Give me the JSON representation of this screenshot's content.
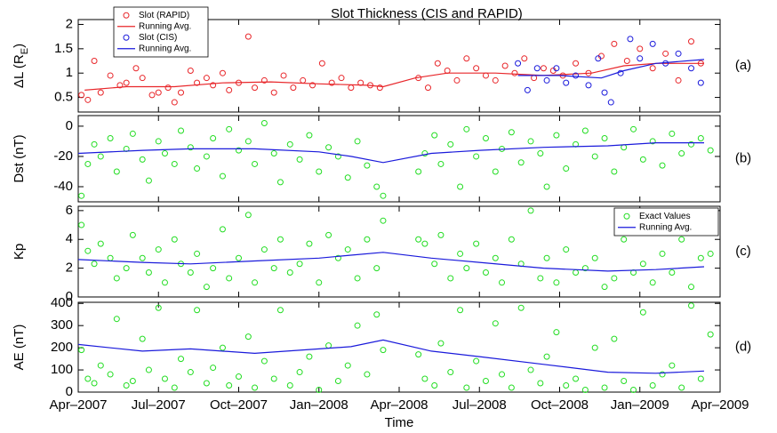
{
  "chart_data": [
    {
      "type": "scatter",
      "title": "Slot Thickness (CIS and RAPID)",
      "ylabel": [
        "ΔL (R",
        "E",
        ")"
      ],
      "panel_label": "(a)",
      "xlim": [
        2007.25,
        2009.25
      ],
      "xticks": [
        2007.25,
        2007.5,
        2007.75,
        2008.0,
        2008.25,
        2008.5,
        2008.75,
        2009.0,
        2009.25
      ],
      "ylim": [
        0.2,
        2.1
      ],
      "yticks": [
        0.5,
        1,
        1.5,
        2
      ],
      "legend": "upper left",
      "series": [
        {
          "name": "Slot (RAPID)",
          "style": "markers",
          "color": "#e8262a",
          "x": [
            2007.26,
            2007.28,
            2007.3,
            2007.32,
            2007.35,
            2007.38,
            2007.4,
            2007.43,
            2007.45,
            2007.48,
            2007.5,
            2007.53,
            2007.55,
            2007.57,
            2007.6,
            2007.62,
            2007.65,
            2007.67,
            2007.7,
            2007.72,
            2007.75,
            2007.78,
            2007.8,
            2007.83,
            2007.86,
            2007.89,
            2007.92,
            2007.95,
            2007.98,
            2008.01,
            2008.04,
            2008.07,
            2008.1,
            2008.13,
            2008.16,
            2008.19,
            2008.31,
            2008.34,
            2008.37,
            2008.4,
            2008.43,
            2008.46,
            2008.49,
            2008.52,
            2008.55,
            2008.58,
            2008.61,
            2008.64,
            2008.67,
            2008.7,
            2008.73,
            2008.76,
            2008.8,
            2008.84,
            2008.88,
            2008.92,
            2008.96,
            2009.0,
            2009.04,
            2009.08,
            2009.12,
            2009.16,
            2009.19
          ],
          "values": [
            0.55,
            0.45,
            1.25,
            0.6,
            0.95,
            0.75,
            0.8,
            1.1,
            0.9,
            0.55,
            0.6,
            0.7,
            0.4,
            0.6,
            1.05,
            0.8,
            0.9,
            0.75,
            1.0,
            0.65,
            0.8,
            1.75,
            0.7,
            0.85,
            0.6,
            0.95,
            0.7,
            0.85,
            0.75,
            1.2,
            0.8,
            0.9,
            0.7,
            0.8,
            0.75,
            0.7,
            0.9,
            0.7,
            1.2,
            1.05,
            0.85,
            1.3,
            1.1,
            0.95,
            0.85,
            1.15,
            1.0,
            1.3,
            0.9,
            1.1,
            1.05,
            0.95,
            1.2,
            1.0,
            1.35,
            1.6,
            1.25,
            1.5,
            1.1,
            1.4,
            0.85,
            1.65,
            1.2
          ]
        },
        {
          "name": "Running Avg.",
          "style": "line",
          "color": "#e8262a",
          "x": [
            2007.27,
            2007.4,
            2007.55,
            2007.7,
            2007.85,
            2008.0,
            2008.15,
            2008.2,
            2008.3,
            2008.4,
            2008.55,
            2008.7,
            2008.85,
            2008.95,
            2009.05,
            2009.2
          ],
          "values": [
            0.65,
            0.72,
            0.72,
            0.8,
            0.82,
            0.78,
            0.75,
            0.72,
            0.9,
            1.0,
            1.0,
            0.95,
            1.0,
            1.15,
            1.2,
            1.2
          ]
        },
        {
          "name": "Slot (CIS)",
          "style": "markers",
          "color": "#1a1adb",
          "x": [
            2008.62,
            2008.65,
            2008.68,
            2008.71,
            2008.74,
            2008.77,
            2008.8,
            2008.84,
            2008.87,
            2008.89,
            2008.91,
            2008.94,
            2008.97,
            2009.0,
            2009.04,
            2009.08,
            2009.12,
            2009.16,
            2009.19
          ],
          "values": [
            1.2,
            0.65,
            1.1,
            0.85,
            1.1,
            0.8,
            0.95,
            0.75,
            1.3,
            0.6,
            0.4,
            1.0,
            1.7,
            1.3,
            1.6,
            1.2,
            1.4,
            1.1,
            0.8
          ]
        },
        {
          "name": "Running Avg.",
          "style": "line",
          "color": "#1a1adb",
          "x": [
            2008.62,
            2008.75,
            2008.88,
            2008.95,
            2009.05,
            2009.2
          ],
          "values": [
            0.95,
            0.95,
            0.9,
            1.05,
            1.2,
            1.28
          ]
        }
      ]
    },
    {
      "type": "scatter",
      "ylabel": "Dst (nT)",
      "panel_label": "(b)",
      "xlim": [
        2007.25,
        2009.25
      ],
      "xticks": [
        2007.25,
        2007.5,
        2007.75,
        2008.0,
        2008.25,
        2008.5,
        2008.75,
        2009.0,
        2009.25
      ],
      "ylim": [
        -50,
        7
      ],
      "yticks": [
        -40,
        -20,
        0
      ],
      "series": [
        {
          "style": "markers",
          "color": "#22dd22",
          "x": [
            2007.26,
            2007.28,
            2007.3,
            2007.32,
            2007.35,
            2007.37,
            2007.4,
            2007.42,
            2007.45,
            2007.47,
            2007.5,
            2007.52,
            2007.55,
            2007.57,
            2007.6,
            2007.62,
            2007.65,
            2007.67,
            2007.7,
            2007.72,
            2007.75,
            2007.78,
            2007.8,
            2007.83,
            2007.86,
            2007.88,
            2007.91,
            2007.94,
            2007.97,
            2008.0,
            2008.03,
            2008.06,
            2008.09,
            2008.12,
            2008.15,
            2008.18,
            2008.2,
            2008.31,
            2008.33,
            2008.36,
            2008.38,
            2008.41,
            2008.44,
            2008.46,
            2008.49,
            2008.52,
            2008.55,
            2008.57,
            2008.6,
            2008.63,
            2008.66,
            2008.69,
            2008.71,
            2008.74,
            2008.77,
            2008.8,
            2008.83,
            2008.86,
            2008.89,
            2008.92,
            2008.95,
            2008.98,
            2009.01,
            2009.04,
            2009.07,
            2009.1,
            2009.13,
            2009.16,
            2009.19,
            2009.22
          ],
          "values": [
            -46,
            -25,
            -12,
            -20,
            -8,
            -30,
            -15,
            -5,
            -22,
            -36,
            -10,
            -18,
            -25,
            -3,
            -14,
            -28,
            -20,
            -8,
            -33,
            -2,
            -16,
            -10,
            -25,
            2,
            -18,
            -37,
            -12,
            -22,
            -6,
            -30,
            -14,
            -20,
            -34,
            -10,
            -26,
            -40,
            -46,
            -30,
            -18,
            -6,
            -25,
            -12,
            -40,
            -2,
            -20,
            -8,
            -30,
            -15,
            -4,
            -24,
            -10,
            -18,
            -40,
            -6,
            -28,
            -12,
            -3,
            -20,
            -8,
            -30,
            -14,
            -2,
            -22,
            -10,
            -26,
            -5,
            -18,
            -12,
            -8,
            -16
          ]
        },
        {
          "style": "line",
          "color": "#1a1adb",
          "x": [
            2007.25,
            2007.45,
            2007.6,
            2007.8,
            2008.0,
            2008.1,
            2008.2,
            2008.35,
            2008.5,
            2008.7,
            2008.9,
            2009.05,
            2009.2
          ],
          "values": [
            -18,
            -16,
            -15,
            -15,
            -17,
            -20,
            -24,
            -18,
            -16,
            -14,
            -13,
            -11,
            -11
          ]
        }
      ]
    },
    {
      "type": "scatter",
      "ylabel": "Kp",
      "panel_label": "(c)",
      "xlim": [
        2007.25,
        2009.25
      ],
      "xticks": [
        2007.25,
        2007.5,
        2007.75,
        2008.0,
        2008.25,
        2008.5,
        2008.75,
        2009.0,
        2009.25
      ],
      "ylim": [
        0,
        6.3
      ],
      "yticks": [
        0,
        2,
        4,
        6
      ],
      "legend": "upper right",
      "series": [
        {
          "name": "Exact Values",
          "style": "markers",
          "color": "#22dd22",
          "x": [
            2007.26,
            2007.28,
            2007.3,
            2007.32,
            2007.35,
            2007.37,
            2007.4,
            2007.42,
            2007.45,
            2007.47,
            2007.5,
            2007.52,
            2007.55,
            2007.57,
            2007.6,
            2007.62,
            2007.65,
            2007.67,
            2007.7,
            2007.72,
            2007.75,
            2007.78,
            2007.8,
            2007.83,
            2007.86,
            2007.88,
            2007.91,
            2007.94,
            2007.97,
            2008.0,
            2008.03,
            2008.06,
            2008.09,
            2008.12,
            2008.15,
            2008.18,
            2008.2,
            2008.31,
            2008.33,
            2008.36,
            2008.38,
            2008.41,
            2008.44,
            2008.46,
            2008.49,
            2008.52,
            2008.55,
            2008.57,
            2008.6,
            2008.63,
            2008.66,
            2008.69,
            2008.71,
            2008.74,
            2008.77,
            2008.8,
            2008.83,
            2008.86,
            2008.89,
            2008.92,
            2008.95,
            2008.98,
            2009.01,
            2009.04,
            2009.07,
            2009.1,
            2009.13,
            2009.16,
            2009.19,
            2009.22
          ],
          "values": [
            5.0,
            3.2,
            2.3,
            3.7,
            2.7,
            1.3,
            2.0,
            4.3,
            2.7,
            1.7,
            3.3,
            1.0,
            4.0,
            2.3,
            1.7,
            3.0,
            0.7,
            2.0,
            4.7,
            1.3,
            2.7,
            5.7,
            1.0,
            3.3,
            2.0,
            4.0,
            1.7,
            2.3,
            3.7,
            1.0,
            4.3,
            2.7,
            3.3,
            1.3,
            4.0,
            2.0,
            5.3,
            4.0,
            3.7,
            2.3,
            4.3,
            1.3,
            3.0,
            2.0,
            3.7,
            1.7,
            2.7,
            1.0,
            4.0,
            2.3,
            6.0,
            1.3,
            2.7,
            1.0,
            3.3,
            1.7,
            2.0,
            2.7,
            0.7,
            1.3,
            4.0,
            1.7,
            2.3,
            1.0,
            3.0,
            1.7,
            4.0,
            0.7,
            2.7,
            3.0
          ]
        },
        {
          "name": "Running Avg.",
          "style": "line",
          "color": "#1a1adb",
          "x": [
            2007.25,
            2007.45,
            2007.6,
            2007.8,
            2008.0,
            2008.1,
            2008.2,
            2008.35,
            2008.5,
            2008.7,
            2008.9,
            2009.05,
            2009.2
          ],
          "values": [
            2.6,
            2.4,
            2.3,
            2.5,
            2.7,
            2.9,
            3.1,
            2.7,
            2.4,
            2.0,
            1.8,
            1.9,
            2.1
          ]
        }
      ]
    },
    {
      "type": "scatter",
      "ylabel": "AE (nT)",
      "panel_label": "(d)",
      "xlabel": "Time",
      "xlim": [
        2007.25,
        2009.25
      ],
      "xticks": [
        {
          "value": 2007.25,
          "label": "Apr–2007"
        },
        {
          "value": 2007.5,
          "label": "Jul–2007"
        },
        {
          "value": 2007.75,
          "label": "Oct–2007"
        },
        {
          "value": 2008.0,
          "label": "Jan–2008"
        },
        {
          "value": 2008.25,
          "label": "Apr–2008"
        },
        {
          "value": 2008.5,
          "label": "Jul–2008"
        },
        {
          "value": 2008.75,
          "label": "Oct–2008"
        },
        {
          "value": 2009.0,
          "label": "Jan–2009"
        },
        {
          "value": 2009.25,
          "label": "Apr–2009"
        }
      ],
      "ylim": [
        0,
        405
      ],
      "yticks": [
        0,
        100,
        200,
        300,
        400
      ],
      "series": [
        {
          "style": "markers",
          "color": "#22dd22",
          "x": [
            2007.26,
            2007.28,
            2007.3,
            2007.32,
            2007.35,
            2007.37,
            2007.4,
            2007.42,
            2007.45,
            2007.47,
            2007.5,
            2007.52,
            2007.55,
            2007.57,
            2007.6,
            2007.62,
            2007.65,
            2007.67,
            2007.7,
            2007.72,
            2007.75,
            2007.78,
            2007.8,
            2007.83,
            2007.86,
            2007.88,
            2007.91,
            2007.94,
            2007.97,
            2008.0,
            2008.03,
            2008.06,
            2008.09,
            2008.12,
            2008.15,
            2008.18,
            2008.2,
            2008.31,
            2008.33,
            2008.36,
            2008.38,
            2008.41,
            2008.44,
            2008.46,
            2008.49,
            2008.52,
            2008.55,
            2008.57,
            2008.6,
            2008.63,
            2008.66,
            2008.69,
            2008.71,
            2008.74,
            2008.77,
            2008.8,
            2008.83,
            2008.86,
            2008.89,
            2008.92,
            2008.95,
            2008.98,
            2009.01,
            2009.04,
            2009.07,
            2009.1,
            2009.13,
            2009.16,
            2009.19,
            2009.22
          ],
          "values": [
            190,
            60,
            40,
            120,
            80,
            330,
            30,
            50,
            240,
            100,
            380,
            60,
            20,
            150,
            90,
            370,
            40,
            110,
            200,
            30,
            70,
            250,
            20,
            140,
            60,
            370,
            30,
            90,
            160,
            10,
            210,
            50,
            120,
            300,
            80,
            350,
            190,
            170,
            60,
            30,
            220,
            90,
            370,
            20,
            140,
            50,
            310,
            80,
            20,
            380,
            100,
            40,
            160,
            270,
            30,
            60,
            10,
            200,
            20,
            240,
            50,
            10,
            360,
            30,
            80,
            120,
            20,
            390,
            60,
            260
          ]
        },
        {
          "style": "line",
          "color": "#1a1adb",
          "x": [
            2007.25,
            2007.45,
            2007.6,
            2007.8,
            2008.0,
            2008.1,
            2008.2,
            2008.35,
            2008.5,
            2008.7,
            2008.9,
            2009.05,
            2009.2
          ],
          "values": [
            215,
            185,
            195,
            175,
            195,
            205,
            235,
            185,
            160,
            125,
            90,
            85,
            95
          ]
        }
      ]
    }
  ]
}
